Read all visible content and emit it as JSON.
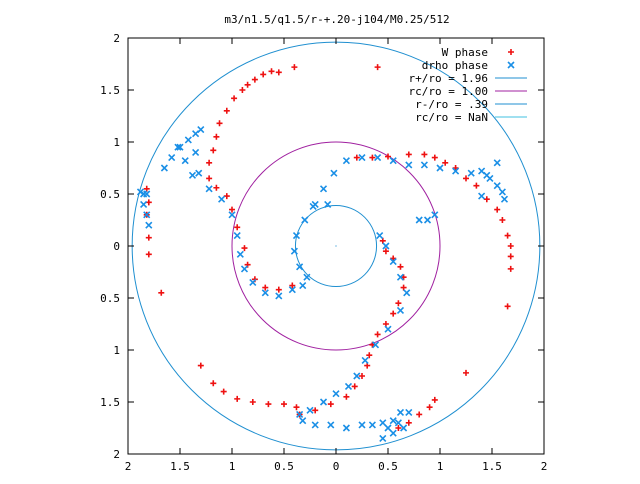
{
  "chart_data": {
    "type": "scatter",
    "title": "m3/n1.5/q1.5/r-+.20-j104/M0.25/512",
    "xlabel": "",
    "ylabel": "",
    "xlim": [
      -2,
      2
    ],
    "ylim": [
      -2,
      2
    ],
    "grid": false,
    "legend_position": "top-right",
    "x_tick_labels": [
      "2",
      "1.5",
      "1",
      "0.5",
      "0",
      "0.5",
      "1",
      "1.5",
      "2"
    ],
    "y_tick_labels": [
      "2",
      "1.5",
      "1",
      "0.5",
      "0",
      "0.5",
      "1",
      "1.5",
      "2"
    ],
    "x_ticks": [
      -2,
      -1.5,
      -1,
      -0.5,
      0,
      0.5,
      1,
      1.5,
      2
    ],
    "y_ticks": [
      2,
      1.5,
      1,
      0.5,
      0,
      -0.5,
      -1,
      -1.5,
      -2
    ],
    "circles": [
      {
        "name": "r+/ro = 1.96",
        "radius": 1.96,
        "color": "#1f8fd0"
      },
      {
        "name": "rc/ro = 1.00",
        "radius": 1.0,
        "color": "#a020a0"
      },
      {
        "name": "r-/ro = .39",
        "radius": 0.39,
        "color": "#1f8fd0"
      },
      {
        "name": "rc/ro = NaN",
        "radius": null,
        "color": "#40c0e0"
      }
    ],
    "series": [
      {
        "name": "W phase",
        "color": "#ee1111",
        "marker": "plus",
        "points": [
          [
            -1.82,
            0.55
          ],
          [
            -1.8,
            0.42
          ],
          [
            -1.82,
            0.3
          ],
          [
            -1.8,
            0.08
          ],
          [
            -1.8,
            -0.08
          ],
          [
            -1.68,
            -0.45
          ],
          [
            -1.3,
            -1.15
          ],
          [
            -1.18,
            -1.32
          ],
          [
            -1.08,
            -1.4
          ],
          [
            -0.95,
            -1.47
          ],
          [
            -0.8,
            -1.5
          ],
          [
            -0.65,
            -1.52
          ],
          [
            -0.5,
            -1.52
          ],
          [
            -0.38,
            -1.55
          ],
          [
            -0.35,
            -1.62
          ],
          [
            -0.2,
            -1.58
          ],
          [
            -0.05,
            -1.52
          ],
          [
            0.1,
            -1.45
          ],
          [
            0.18,
            -1.35
          ],
          [
            0.25,
            -1.25
          ],
          [
            0.3,
            -1.15
          ],
          [
            0.32,
            -1.05
          ],
          [
            0.35,
            -0.95
          ],
          [
            0.4,
            -0.85
          ],
          [
            0.48,
            -0.75
          ],
          [
            0.55,
            -0.65
          ],
          [
            0.6,
            -0.55
          ],
          [
            0.65,
            -0.4
          ],
          [
            0.65,
            -0.3
          ],
          [
            0.62,
            -0.2
          ],
          [
            0.55,
            -0.12
          ],
          [
            0.48,
            -0.05
          ],
          [
            0.45,
            0.05
          ],
          [
            -0.42,
            -0.38
          ],
          [
            -0.55,
            -0.42
          ],
          [
            -0.68,
            -0.4
          ],
          [
            -0.78,
            -0.32
          ],
          [
            -0.85,
            -0.18
          ],
          [
            -0.88,
            -0.02
          ],
          [
            -0.95,
            0.18
          ],
          [
            -1.0,
            0.35
          ],
          [
            -1.05,
            0.48
          ],
          [
            -1.15,
            0.56
          ],
          [
            -1.22,
            0.65
          ],
          [
            -1.22,
            0.8
          ],
          [
            -1.18,
            0.92
          ],
          [
            -1.15,
            1.05
          ],
          [
            -1.12,
            1.18
          ],
          [
            -1.05,
            1.3
          ],
          [
            -0.98,
            1.42
          ],
          [
            -0.9,
            1.5
          ],
          [
            -0.85,
            1.55
          ],
          [
            -0.78,
            1.6
          ],
          [
            -0.7,
            1.65
          ],
          [
            -0.62,
            1.68
          ],
          [
            -0.55,
            1.67
          ],
          [
            -0.4,
            1.72
          ],
          [
            0.4,
            1.72
          ],
          [
            0.2,
            0.85
          ],
          [
            0.35,
            0.85
          ],
          [
            0.5,
            0.86
          ],
          [
            0.7,
            0.88
          ],
          [
            0.85,
            0.88
          ],
          [
            0.95,
            0.85
          ],
          [
            1.05,
            0.8
          ],
          [
            1.15,
            0.75
          ],
          [
            1.25,
            0.65
          ],
          [
            1.35,
            0.58
          ],
          [
            1.45,
            0.45
          ],
          [
            1.55,
            0.35
          ],
          [
            1.6,
            0.25
          ],
          [
            1.65,
            0.1
          ],
          [
            1.68,
            0.0
          ],
          [
            1.68,
            -0.1
          ],
          [
            1.68,
            -0.22
          ],
          [
            1.65,
            -0.58
          ],
          [
            1.25,
            -1.22
          ],
          [
            0.95,
            -1.48
          ],
          [
            0.9,
            -1.55
          ],
          [
            0.8,
            -1.62
          ],
          [
            0.7,
            -1.7
          ],
          [
            0.6,
            -1.75
          ]
        ]
      },
      {
        "name": "drho phase",
        "color": "#1a8fe6",
        "marker": "cross",
        "points": [
          [
            -1.88,
            0.52
          ],
          [
            -1.85,
            0.4
          ],
          [
            -1.82,
            0.3
          ],
          [
            -1.85,
            0.5
          ],
          [
            -1.65,
            0.75
          ],
          [
            -1.58,
            0.85
          ],
          [
            -1.52,
            0.95
          ],
          [
            -1.42,
            1.02
          ],
          [
            -1.35,
            1.08
          ],
          [
            -1.3,
            1.12
          ],
          [
            -1.35,
            0.9
          ],
          [
            -1.32,
            0.7
          ],
          [
            -1.22,
            0.55
          ],
          [
            -1.1,
            0.45
          ],
          [
            -1.0,
            0.3
          ],
          [
            -0.95,
            0.1
          ],
          [
            -0.92,
            -0.08
          ],
          [
            -0.88,
            -0.22
          ],
          [
            -0.8,
            -0.35
          ],
          [
            -0.68,
            -0.45
          ],
          [
            -0.55,
            -0.48
          ],
          [
            -0.42,
            -0.42
          ],
          [
            -0.32,
            -0.38
          ],
          [
            -0.28,
            -0.3
          ],
          [
            -0.35,
            -0.2
          ],
          [
            -0.4,
            -0.05
          ],
          [
            -0.38,
            0.1
          ],
          [
            -0.3,
            0.25
          ],
          [
            -0.22,
            0.38
          ],
          [
            -0.12,
            0.55
          ],
          [
            -0.02,
            0.7
          ],
          [
            0.1,
            0.82
          ],
          [
            0.25,
            0.85
          ],
          [
            0.4,
            0.85
          ],
          [
            0.55,
            0.82
          ],
          [
            0.7,
            0.78
          ],
          [
            0.85,
            0.78
          ],
          [
            1.0,
            0.75
          ],
          [
            1.15,
            0.72
          ],
          [
            1.3,
            0.7
          ],
          [
            1.4,
            0.72
          ],
          [
            1.48,
            0.65
          ],
          [
            1.55,
            0.58
          ],
          [
            1.6,
            0.52
          ],
          [
            1.62,
            0.45
          ],
          [
            1.55,
            0.8
          ],
          [
            1.45,
            0.68
          ],
          [
            1.4,
            0.48
          ],
          [
            0.95,
            0.3
          ],
          [
            0.88,
            0.25
          ],
          [
            0.8,
            0.25
          ],
          [
            -0.2,
            0.4
          ],
          [
            -0.08,
            0.4
          ],
          [
            0.42,
            0.1
          ],
          [
            0.48,
            0.0
          ],
          [
            0.55,
            -0.15
          ],
          [
            0.62,
            -0.3
          ],
          [
            0.68,
            -0.45
          ],
          [
            0.62,
            -0.62
          ],
          [
            0.5,
            -0.8
          ],
          [
            0.38,
            -0.95
          ],
          [
            0.28,
            -1.1
          ],
          [
            0.2,
            -1.25
          ],
          [
            0.12,
            -1.35
          ],
          [
            0.0,
            -1.42
          ],
          [
            -0.12,
            -1.5
          ],
          [
            -0.25,
            -1.58
          ],
          [
            -0.35,
            -1.62
          ],
          [
            -0.32,
            -1.68
          ],
          [
            -0.2,
            -1.72
          ],
          [
            -0.05,
            -1.72
          ],
          [
            0.1,
            -1.75
          ],
          [
            0.25,
            -1.72
          ],
          [
            0.35,
            -1.72
          ],
          [
            0.45,
            -1.7
          ],
          [
            0.55,
            -1.68
          ],
          [
            0.62,
            -1.6
          ],
          [
            0.7,
            -1.6
          ],
          [
            0.6,
            -1.7
          ],
          [
            0.5,
            -1.75
          ],
          [
            0.45,
            -1.85
          ],
          [
            0.55,
            -1.8
          ],
          [
            0.65,
            -1.75
          ],
          [
            -1.8,
            0.2
          ],
          [
            -1.82,
            0.5
          ],
          [
            -1.5,
            0.95
          ],
          [
            -1.45,
            0.82
          ],
          [
            -1.38,
            0.68
          ]
        ]
      }
    ]
  }
}
